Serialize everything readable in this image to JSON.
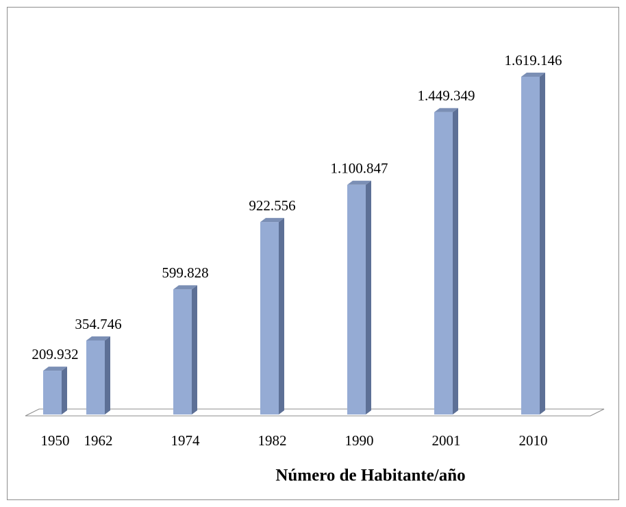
{
  "chart_data": {
    "type": "bar3d",
    "x_label": "Número de Habitante/año",
    "categories": [
      "1950",
      "1962",
      "1974",
      "1982",
      "1990",
      "2001",
      "2010"
    ],
    "values": [
      209932,
      354746,
      599828,
      922556,
      1100847,
      1449349,
      1619146
    ],
    "value_labels": [
      "209.932",
      "354.746",
      "599.828",
      "922.556",
      "1.100.847",
      "1.449.349",
      "1.619.146"
    ],
    "color": "#95abd4"
  }
}
